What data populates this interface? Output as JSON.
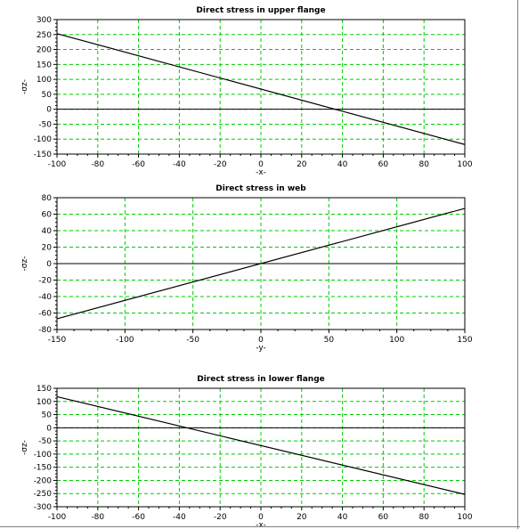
{
  "chart_data": [
    {
      "type": "line",
      "title": "Direct stress in upper flange",
      "xlabel": "-x-",
      "ylabel": "-σz-",
      "xlim": [
        -100,
        100
      ],
      "ylim": [
        -150,
        300
      ],
      "xticks": [
        -100,
        -80,
        -60,
        -40,
        -20,
        0,
        20,
        40,
        60,
        80,
        100
      ],
      "yticks": [
        -150,
        -100,
        -50,
        0,
        50,
        100,
        150,
        200,
        250,
        300
      ],
      "x_tick_labels": [
        "-100",
        "-80",
        "-60",
        "-40",
        "-20",
        "0",
        "20",
        "40",
        "60",
        "80",
        "100"
      ],
      "y_tick_labels": [
        "-150",
        "-100",
        "-50",
        "0",
        "50",
        "100",
        "150",
        "200",
        "250",
        "300"
      ],
      "grid": true,
      "series": [
        {
          "x": [
            -100,
            100
          ],
          "y": [
            253,
            -118
          ]
        }
      ]
    },
    {
      "type": "line",
      "title": "Direct stress in web",
      "xlabel": "-y-",
      "ylabel": "-σz-",
      "xlim": [
        -150,
        150
      ],
      "ylim": [
        -80,
        80
      ],
      "xticks": [
        -150,
        -100,
        -50,
        0,
        50,
        100,
        150
      ],
      "yticks": [
        -80,
        -60,
        -40,
        -20,
        0,
        20,
        40,
        60,
        80
      ],
      "x_tick_labels": [
        "-150",
        "-100",
        "-50",
        "0",
        "50",
        "100",
        "150"
      ],
      "y_tick_labels": [
        "-80",
        "-60",
        "-40",
        "-20",
        "0",
        "20",
        "40",
        "60",
        "80"
      ],
      "grid": true,
      "series": [
        {
          "x": [
            -150,
            150
          ],
          "y": [
            -67,
            67
          ]
        }
      ]
    },
    {
      "type": "line",
      "title": "Direct stress in lower flange",
      "xlabel": "-x-",
      "ylabel": "-σz-",
      "xlim": [
        -100,
        100
      ],
      "ylim": [
        -300,
        150
      ],
      "xticks": [
        -100,
        -80,
        -60,
        -40,
        -20,
        0,
        20,
        40,
        60,
        80,
        100
      ],
      "yticks": [
        -300,
        -250,
        -200,
        -150,
        -100,
        -50,
        0,
        50,
        100,
        150
      ],
      "x_tick_labels": [
        "-100",
        "-80",
        "-60",
        "-40",
        "-20",
        "0",
        "20",
        "40",
        "60",
        "80",
        "100"
      ],
      "y_tick_labels": [
        "-300",
        "-250",
        "-200",
        "-150",
        "-100",
        "-50",
        "0",
        "50",
        "100",
        "150"
      ],
      "grid": true,
      "series": [
        {
          "x": [
            -100,
            100
          ],
          "y": [
            118,
            -253
          ]
        }
      ]
    }
  ],
  "style": {
    "background": "#ffffff",
    "grid_color": "#00cc00",
    "line_color": "#000000",
    "axis_color": "#000000"
  }
}
